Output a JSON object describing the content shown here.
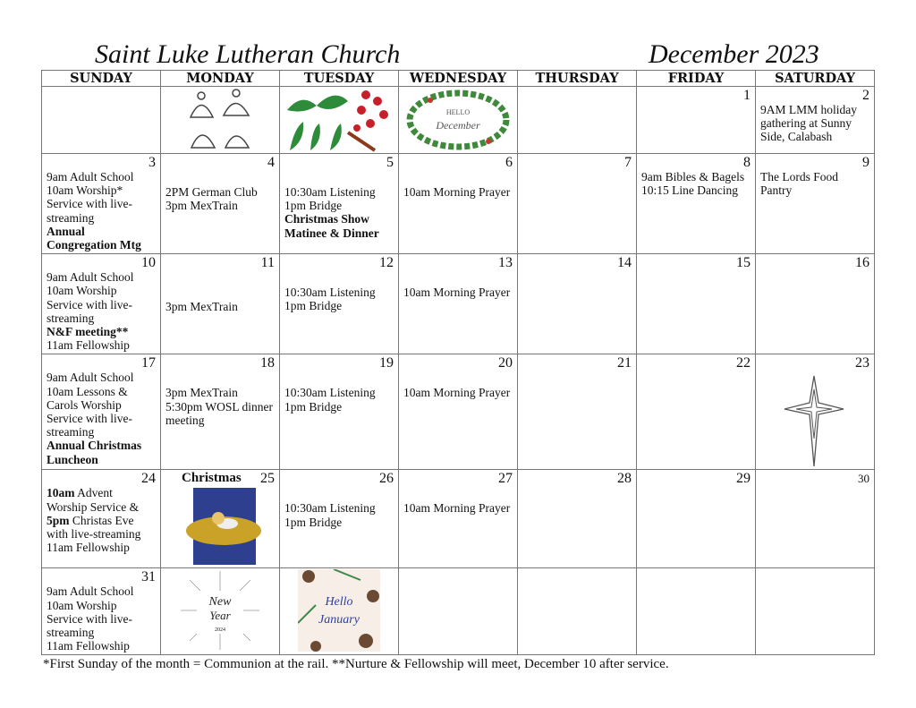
{
  "header": {
    "church": "Saint Luke Lutheran Church",
    "month": "December 2023"
  },
  "weekdays": [
    "SUNDAY",
    "MONDAY",
    "TUESDAY",
    "WEDNESDAY",
    "THURSDAY",
    "FRIDAY",
    "SATURDAY"
  ],
  "days": {
    "d1": "1",
    "d2": "2",
    "d2e": "9AM LMM holiday gathering at Sunny Side, Calabash",
    "d3": "3",
    "d4": "4",
    "d5": "5",
    "d6": "6",
    "d7": "7",
    "d8": "8",
    "d9": "9",
    "d10": "10",
    "d11": "11",
    "d12": "12",
    "d13": "13",
    "d14": "14",
    "d15": "15",
    "d16": "16",
    "d17": "17",
    "d18": "18",
    "d19": "19",
    "d20": "20",
    "d21": "21",
    "d22": "22",
    "d23": "23",
    "d24": "24",
    "d25": "25",
    "d26": "26",
    "d27": "27",
    "d28": "28",
    "d29": "29",
    "d30": "30",
    "d31": "31"
  },
  "events": {
    "adult": "9am Adult School",
    "worship_star": "10am Worship*",
    "service": "Service with live-streaming",
    "annual_mtg": "Annual Congregation Mtg",
    "german": "2PM German Club",
    "mex": "3pm MexTrain",
    "listening": "10:30am Listening",
    "bridge": "1pm Bridge",
    "show": "Christmas Show Matinee & Dinner",
    "prayer": "10am Morning Prayer",
    "bibles": "9am Bibles & Bagels",
    "line": "10:15 Line Dancing",
    "pantry": "The Lords Food Pantry",
    "worship": "10am Worship",
    "nf": "N&F meeting**",
    "fellowship": "11am Fellowship",
    "lessons": "10am Lessons & Carols Worship",
    "luncheon": "Annual Christmas Luncheon",
    "wosl": "5:30pm WOSL dinner meeting",
    "t10": "10am",
    "advent": " Advent Worship Service &",
    "t5": "5pm",
    "eve": " Christas Eve with live-streaming",
    "christmas": "Christmas"
  },
  "images": {
    "hello_december": "HELLO December",
    "new_year": "New Year 2024",
    "hello_january": "Hello January"
  },
  "footer": "*First Sunday of the month  = Communion at the rail.    **Nurture & Fellowship will meet, December 10 after service."
}
